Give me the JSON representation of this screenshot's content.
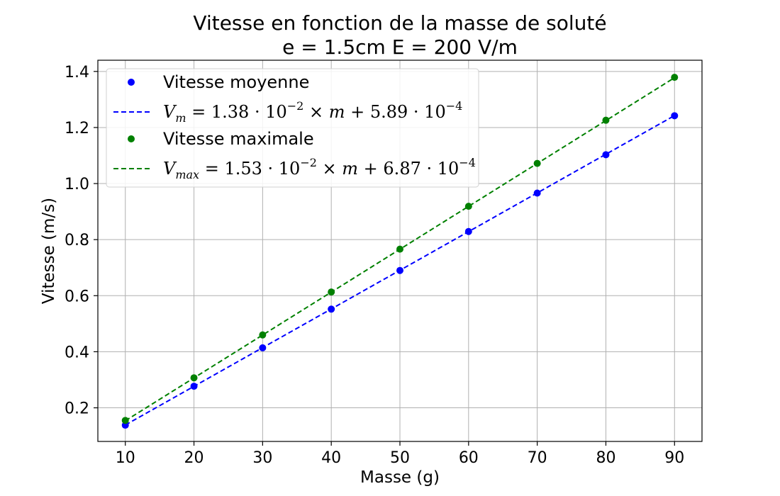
{
  "chart_data": {
    "type": "scatter",
    "title": "Vitesse en fonction de la masse de soluté",
    "subtitle": "e = 1.5cm E = 200 V/m",
    "xlabel": "Masse (g)",
    "ylabel": "Vitesse (m/s)",
    "xlim": [
      6,
      94
    ],
    "ylim": [
      0.08,
      1.44
    ],
    "xticks": [
      10,
      20,
      30,
      40,
      50,
      60,
      70,
      80,
      90
    ],
    "yticks": [
      0.2,
      0.4,
      0.6,
      0.8,
      1.0,
      1.2,
      1.4
    ],
    "grid": true,
    "legend_position": "top-left",
    "x": [
      10,
      20,
      30,
      40,
      50,
      60,
      70,
      80,
      90
    ],
    "series": [
      {
        "name": "Vitesse moyenne",
        "kind": "points",
        "color": "#0000ff",
        "values": [
          0.138,
          0.277,
          0.414,
          0.552,
          0.69,
          0.829,
          0.966,
          1.103,
          1.242
        ]
      },
      {
        "name": "V_m = 1.38·10^-2 × m + 5.89·10^-4",
        "kind": "fit-line",
        "color": "#0000ff",
        "slope": 0.0138,
        "intercept": 0.000589
      },
      {
        "name": "Vitesse maximale",
        "kind": "points",
        "color": "#008000",
        "values": [
          0.155,
          0.307,
          0.46,
          0.613,
          0.766,
          0.919,
          1.072,
          1.226,
          1.379
        ]
      },
      {
        "name": "V_max = 1.53·10^-2 × m + 6.87·10^-4",
        "kind": "fit-line",
        "color": "#008000",
        "slope": 0.0153,
        "intercept": 0.000687
      }
    ]
  },
  "legend": {
    "entry1": "Vitesse moyenne",
    "entry3": "Vitesse maximale",
    "fit1": {
      "v": "V",
      "sub": "m",
      "eq1": " = 1.38 · 10",
      "exp1": "−2",
      "mid": " × ",
      "m": "m",
      "eq2": " + 5.89 · 10",
      "exp2": "−4"
    },
    "fit2": {
      "v": "V",
      "sub": "max",
      "eq1": " = 1.53 · 10",
      "exp1": "−2",
      "mid": " × ",
      "m": "m",
      "eq2": " + 6.87 · 10",
      "exp2": "−4"
    }
  }
}
